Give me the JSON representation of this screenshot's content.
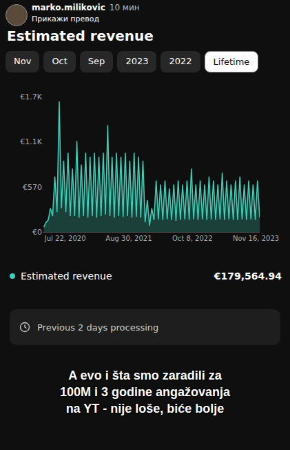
{
  "header": {
    "username": "marko.milikovic",
    "time": "10 мин",
    "translate": "Прикажи превод",
    "title": "Estimated revenue"
  },
  "tabs": [
    "Nov",
    "Oct",
    "Sep",
    "2023",
    "2022",
    "Lifetime"
  ],
  "selected_tab": "Lifetime",
  "chart_data": {
    "type": "line",
    "color": "#3ecfb9",
    "grid": false,
    "x": [
      "2020-03-08",
      "2020-03-22",
      "2020-04-05",
      "2020-04-19",
      "2020-05-03",
      "2020-05-17",
      "2020-05-31",
      "2020-06-14",
      "2020-06-28",
      "2020-07-12",
      "2020-07-26",
      "2020-08-09",
      "2020-08-23",
      "2020-09-06",
      "2020-09-20",
      "2020-10-04",
      "2020-10-18",
      "2020-11-01",
      "2020-11-15",
      "2020-11-29",
      "2020-12-13",
      "2020-12-27",
      "2021-01-10",
      "2021-01-24",
      "2021-02-07",
      "2021-02-21",
      "2021-03-07",
      "2021-03-21",
      "2021-04-04",
      "2021-04-18",
      "2021-05-02",
      "2021-05-16",
      "2021-05-30",
      "2021-06-13",
      "2021-06-27",
      "2021-07-11",
      "2021-07-25",
      "2021-08-08",
      "2021-08-22",
      "2021-09-05",
      "2021-09-19",
      "2021-10-03",
      "2021-10-17",
      "2021-10-31",
      "2021-11-14",
      "2021-11-28",
      "2021-12-12",
      "2021-12-26",
      "2022-01-09",
      "2022-01-23",
      "2022-02-06",
      "2022-02-20",
      "2022-03-06",
      "2022-03-20",
      "2022-04-03",
      "2022-04-17",
      "2022-05-01",
      "2022-05-15",
      "2022-05-29",
      "2022-06-12",
      "2022-06-26",
      "2022-07-10",
      "2022-07-24",
      "2022-08-07",
      "2022-08-21",
      "2022-09-04",
      "2022-09-18",
      "2022-10-02",
      "2022-10-16",
      "2022-10-30",
      "2022-11-13",
      "2022-11-27",
      "2022-12-11",
      "2022-12-25",
      "2023-01-08",
      "2023-01-22",
      "2023-02-05",
      "2023-02-19",
      "2023-03-05",
      "2023-03-19",
      "2023-04-02",
      "2023-04-16",
      "2023-04-30",
      "2023-05-14",
      "2023-05-28",
      "2023-06-11",
      "2023-06-25",
      "2023-07-09",
      "2023-07-23",
      "2023-08-06",
      "2023-08-20",
      "2023-09-03",
      "2023-09-17",
      "2023-10-01",
      "2023-10-15",
      "2023-10-29",
      "2023-11-12",
      "2023-11-26",
      "2023-12-10"
    ],
    "values": [
      60,
      120,
      150,
      300,
      200,
      700,
      250,
      1650,
      300,
      900,
      250,
      1000,
      200,
      800,
      200,
      1150,
      180,
      850,
      200,
      1000,
      180,
      950,
      200,
      1000,
      180,
      950,
      200,
      1000,
      220,
      1350,
      200,
      950,
      180,
      1000,
      200,
      950,
      190,
      1000,
      200,
      900,
      180,
      1000,
      190,
      950,
      180,
      900,
      120,
      400,
      80,
      300,
      150,
      650,
      160,
      600,
      150,
      650,
      160,
      550,
      150,
      600,
      140,
      650,
      150,
      600,
      160,
      650,
      150,
      800,
      160,
      600,
      150,
      650,
      160,
      600,
      150,
      700,
      160,
      650,
      150,
      600,
      160,
      750,
      150,
      650,
      160,
      600,
      150,
      650,
      150,
      700,
      160,
      600,
      150,
      650,
      160,
      600,
      150,
      650,
      180
    ],
    "xlim": [
      "2020-03-01",
      "2023-12-10"
    ],
    "xticks": [
      {
        "value": "2020-07-22",
        "label": "Jul 22, 2020"
      },
      {
        "value": "2021-08-30",
        "label": "Aug 30, 2021"
      },
      {
        "value": "2022-10-08",
        "label": "Oct 8, 2022"
      },
      {
        "value": "2023-11-16",
        "label": "Nov 16, 2023"
      }
    ],
    "ylim": [
      0,
      1710
    ],
    "yticks": [
      {
        "value": 0,
        "label": "€0"
      },
      {
        "value": 570,
        "label": "€570"
      },
      {
        "value": 1140,
        "label": "€1.1K"
      },
      {
        "value": 1710,
        "label": "€1.7K"
      }
    ]
  },
  "summary": {
    "label": "Estimated revenue",
    "value": "€179,564.94",
    "note": "Previous 2 days processing"
  },
  "caption": [
    "A evo i šta smo zaradili za",
    "100M i 3 godine angažovanja",
    "na YT - nije loše, biće bolje"
  ]
}
